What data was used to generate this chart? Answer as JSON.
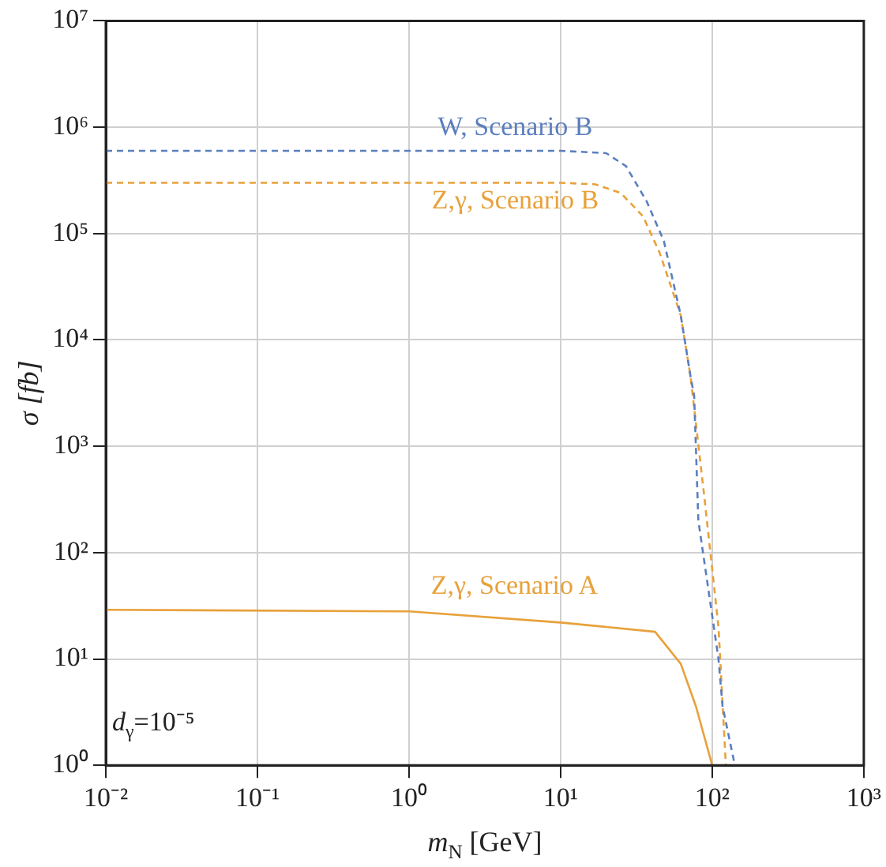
{
  "chart_data": {
    "type": "line",
    "xlabel": "m$_{N}$ [GeV]",
    "ylabel": "σ [fb]",
    "log": "xy",
    "grid": true,
    "legend": false,
    "marker": "none",
    "xlim": [
      0.01,
      1000
    ],
    "ylim": [
      1,
      10000000
    ],
    "xticks": [
      {
        "value": 0.01,
        "label": "10⁻²"
      },
      {
        "value": 0.1,
        "label": "10⁻¹"
      },
      {
        "value": 1,
        "label": "10⁰"
      },
      {
        "value": 10,
        "label": "10¹"
      },
      {
        "value": 100,
        "label": "10²"
      },
      {
        "value": 1000,
        "label": "10³"
      }
    ],
    "yticks": [
      {
        "value": 1,
        "label": "10⁰"
      },
      {
        "value": 10,
        "label": "10¹"
      },
      {
        "value": 100,
        "label": "10²"
      },
      {
        "value": 1000,
        "label": "10³"
      },
      {
        "value": 10000,
        "label": "10⁴"
      },
      {
        "value": 100000,
        "label": "10⁵"
      },
      {
        "value": 1000000,
        "label": "10⁶"
      },
      {
        "value": 10000000,
        "label": "10⁷"
      }
    ],
    "annotations": [
      "d$_{γ}$=10⁻⁵"
    ],
    "series": [
      {
        "name": "W, Scenario B",
        "color": "#5b7fbf",
        "line_style": "dashed",
        "x": [
          0.01,
          1,
          10,
          20,
          27,
          37,
          48,
          62,
          72,
          76,
          81,
          110,
          117,
          141
        ],
        "values": [
          600000,
          600000,
          600000,
          570000,
          430000,
          200000,
          85000,
          17000,
          4500,
          3000,
          200,
          10,
          3.6,
          1
        ]
      },
      {
        "name": "Z,γ, Scenario B",
        "color": "#e8a13a",
        "line_style": "dashed",
        "x": [
          0.01,
          1,
          10,
          17,
          25,
          35,
          45,
          62,
          72,
          89,
          110,
          123
        ],
        "values": [
          300000,
          300000,
          300000,
          290000,
          240000,
          145000,
          66000,
          17000,
          4500,
          320,
          20,
          1
        ]
      },
      {
        "name": "Z,γ, Scenario A",
        "color": "#e8a13a",
        "line_style": "solid",
        "x": [
          0.01,
          1,
          10,
          20,
          42,
          62,
          78,
          100
        ],
        "values": [
          29,
          28,
          22,
          20,
          18,
          9,
          3.6,
          1
        ]
      }
    ]
  }
}
